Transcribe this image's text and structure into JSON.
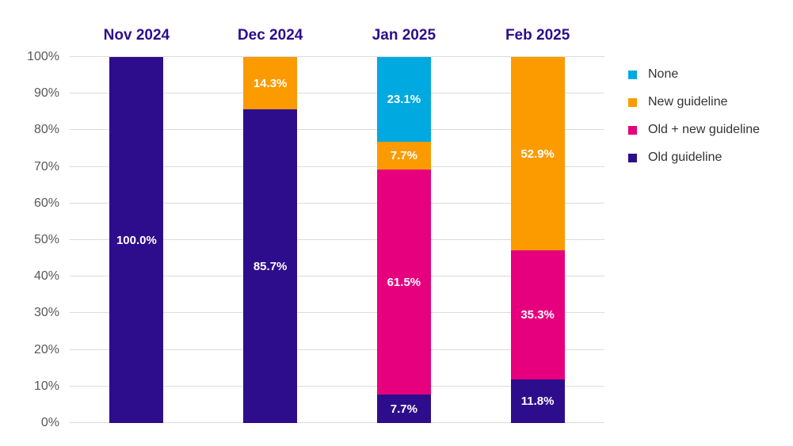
{
  "chart_data": {
    "type": "bar",
    "stacked": true,
    "orientation": "vertical",
    "unit": "%",
    "categories": [
      "Nov 2024",
      "Dec 2024",
      "Jan 2025",
      "Feb 2025"
    ],
    "series": [
      {
        "name": "None",
        "color": "#00a9e0",
        "values": [
          0,
          0,
          23.1,
          0
        ]
      },
      {
        "name": "New guideline",
        "color": "#fb9b00",
        "values": [
          0,
          14.3,
          7.7,
          52.9
        ]
      },
      {
        "name": "Old + new guideline",
        "color": "#e6007e",
        "values": [
          0,
          0,
          61.5,
          35.3
        ]
      },
      {
        "name": "Old guideline",
        "color": "#2e0d8c",
        "values": [
          100.0,
          85.7,
          7.7,
          11.8
        ]
      }
    ],
    "yticks": [
      "0%",
      "10%",
      "20%",
      "30%",
      "40%",
      "50%",
      "60%",
      "70%",
      "80%",
      "90%",
      "100%"
    ],
    "ylim": [
      0,
      100
    ],
    "grid": "horizontal",
    "legend_position": "right",
    "data_labels": "one-decimal-percent-inside-white-bold"
  },
  "colors": {
    "background": "#ffffff",
    "category_header_text": "#2e0d8c",
    "axis_text": "#595959",
    "gridline": "#dcdcdc",
    "segment_label_text": "#ffffff",
    "legend_text": "#333333"
  }
}
